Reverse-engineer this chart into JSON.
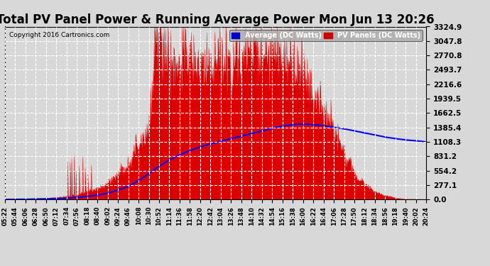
{
  "title": "Total PV Panel Power & Running Average Power Mon Jun 13 20:26",
  "copyright": "Copyright 2016 Cartronics.com",
  "ylabel_ticks": [
    0.0,
    277.1,
    554.2,
    831.2,
    1108.3,
    1385.4,
    1662.5,
    1939.5,
    2216.6,
    2493.7,
    2770.8,
    3047.8,
    3324.9
  ],
  "ymax": 3324.9,
  "ymin": 0.0,
  "background_color": "#d8d8d8",
  "plot_bg_color": "#d8d8d8",
  "grid_color": "#ffffff",
  "legend_avg_bg": "#0000cc",
  "legend_pv_bg": "#cc0000",
  "legend_avg_text": "Average (DC Watts)",
  "legend_pv_text": "PV Panels (DC Watts)",
  "pv_color": "#dd0000",
  "avg_color": "#0000ff",
  "title_fontsize": 12,
  "x_tick_labels": [
    "05:22",
    "05:44",
    "06:06",
    "06:28",
    "06:50",
    "07:12",
    "07:34",
    "07:56",
    "08:18",
    "08:40",
    "09:02",
    "09:24",
    "09:46",
    "10:08",
    "10:30",
    "10:52",
    "11:14",
    "11:36",
    "11:58",
    "12:20",
    "12:42",
    "13:04",
    "13:26",
    "13:48",
    "14:10",
    "14:32",
    "14:54",
    "15:16",
    "15:38",
    "16:00",
    "16:22",
    "16:44",
    "17:06",
    "17:28",
    "17:50",
    "18:12",
    "18:34",
    "18:56",
    "19:18",
    "19:40",
    "20:02",
    "20:24"
  ],
  "pv_key_values": [
    2,
    5,
    10,
    15,
    25,
    40,
    60,
    90,
    150,
    220,
    320,
    500,
    700,
    1100,
    1400,
    3200,
    2600,
    2700,
    2750,
    2500,
    2650,
    2600,
    2700,
    2750,
    2800,
    2850,
    2900,
    2800,
    2600,
    2400,
    2000,
    1700,
    1400,
    900,
    500,
    300,
    150,
    80,
    30,
    10,
    5,
    2
  ],
  "avg_key_values": [
    2,
    3,
    5,
    8,
    12,
    18,
    25,
    38,
    58,
    85,
    120,
    180,
    250,
    360,
    500,
    640,
    760,
    860,
    940,
    1010,
    1070,
    1120,
    1170,
    1220,
    1270,
    1320,
    1370,
    1410,
    1440,
    1450,
    1440,
    1420,
    1390,
    1360,
    1320,
    1280,
    1240,
    1200,
    1170,
    1145,
    1130,
    1108
  ]
}
